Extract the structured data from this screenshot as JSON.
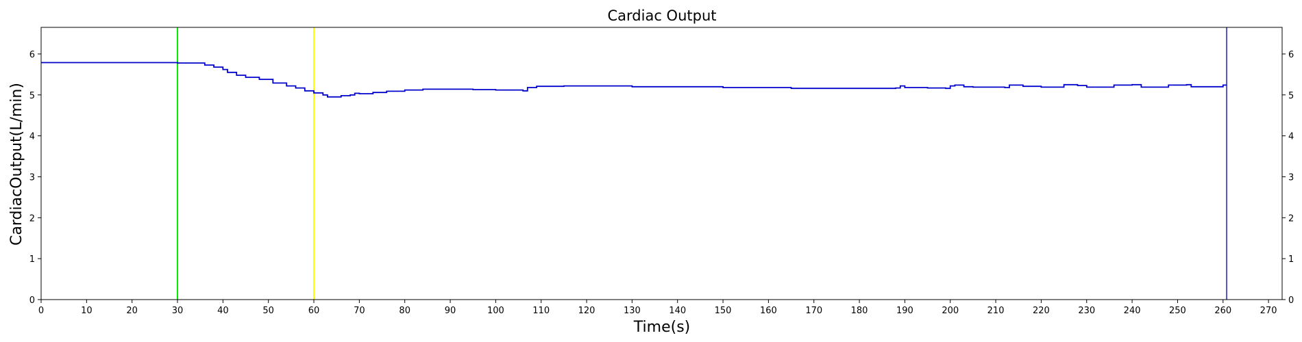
{
  "chart_data": {
    "type": "line",
    "title": "Cardiac Output",
    "xlabel": "Time(s)",
    "ylabel": "CardiacOutput(L/min)",
    "xlim": [
      0,
      273
    ],
    "ylim": [
      0,
      6.65
    ],
    "x_ticks": [
      0,
      10,
      20,
      30,
      40,
      50,
      60,
      70,
      80,
      90,
      100,
      110,
      120,
      130,
      140,
      150,
      160,
      170,
      180,
      190,
      200,
      210,
      220,
      230,
      240,
      250,
      260,
      270
    ],
    "y_ticks": [
      0,
      1,
      2,
      3,
      4,
      5,
      6
    ],
    "grid": false,
    "right_axis_ticks": true,
    "series": [
      {
        "color": "#0000cc",
        "line_style": "step",
        "x": [
          0,
          30,
          34,
          36,
          38,
          40,
          41,
          43,
          45,
          48,
          51,
          54,
          56,
          58,
          60,
          62,
          63,
          66,
          68,
          69,
          70,
          73,
          76,
          80,
          84,
          88,
          95,
          100,
          106,
          107,
          109,
          115,
          130,
          150,
          165,
          188,
          189,
          190,
          195,
          199,
          200,
          201,
          203,
          205,
          212,
          213,
          216,
          220,
          224,
          225,
          228,
          230,
          235,
          236,
          240,
          242,
          247,
          248,
          252,
          253,
          259,
          260,
          260.8
        ],
        "y": [
          5.79,
          5.78,
          5.78,
          5.73,
          5.68,
          5.62,
          5.55,
          5.48,
          5.43,
          5.38,
          5.29,
          5.22,
          5.17,
          5.1,
          5.05,
          5.0,
          4.95,
          4.98,
          5.0,
          5.04,
          5.03,
          5.06,
          5.09,
          5.12,
          5.14,
          5.14,
          5.13,
          5.12,
          5.1,
          5.18,
          5.21,
          5.22,
          5.2,
          5.18,
          5.16,
          5.17,
          5.22,
          5.18,
          5.17,
          5.16,
          5.22,
          5.24,
          5.2,
          5.19,
          5.18,
          5.24,
          5.21,
          5.19,
          5.19,
          5.25,
          5.23,
          5.19,
          5.19,
          5.24,
          5.25,
          5.19,
          5.19,
          5.24,
          5.25,
          5.2,
          5.2,
          5.24,
          5.24
        ]
      }
    ],
    "vertical_markers": [
      {
        "x": 30,
        "color": "#00ee00"
      },
      {
        "x": 60,
        "color": "#ffff00"
      },
      {
        "x": 260.8,
        "color": "#5555bb"
      }
    ]
  }
}
